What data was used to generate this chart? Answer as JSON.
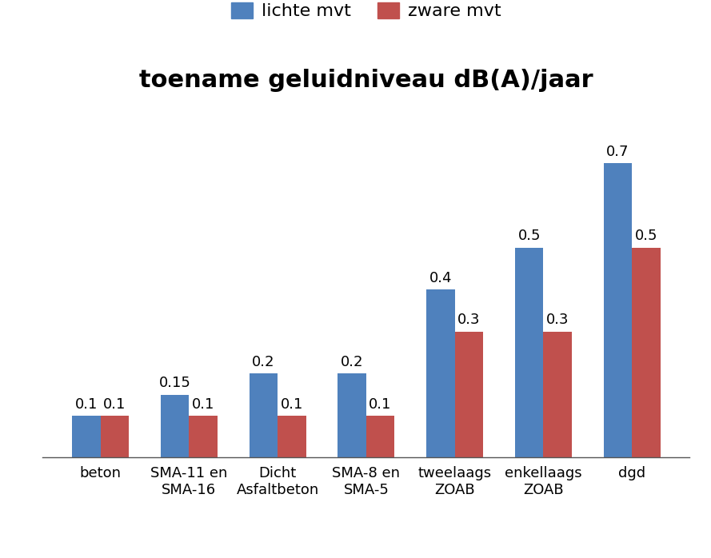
{
  "title": "toename geluidniveau dB(A)/jaar",
  "categories": [
    "beton",
    "SMA-11 en\nSMA-16",
    "Dicht\nAsfaltbeton",
    "SMA-8 en\nSMA-5",
    "tweelaags\nZOAB",
    "enkellaags\nZOAB",
    "dgd"
  ],
  "lichte_mvt": [
    0.1,
    0.15,
    0.2,
    0.2,
    0.4,
    0.5,
    0.7
  ],
  "zware_mvt": [
    0.1,
    0.1,
    0.1,
    0.1,
    0.3,
    0.3,
    0.5
  ],
  "color_lichte": "#4F81BD",
  "color_zware": "#C0504D",
  "legend_labels": [
    "lichte mvt",
    "zware mvt"
  ],
  "ylim": [
    0,
    0.85
  ],
  "bar_width": 0.32,
  "title_fontsize": 22,
  "tick_fontsize": 13,
  "legend_fontsize": 16,
  "annot_fontsize": 13,
  "background_color": "#ffffff"
}
